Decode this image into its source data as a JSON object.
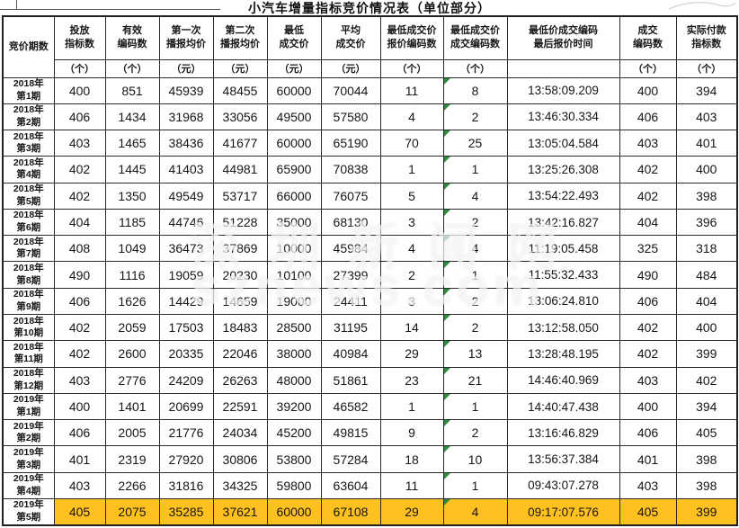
{
  "watermark": {
    "line1": "深圳新闻网",
    "line2": "sznews.com"
  },
  "colors": {
    "highlight_row": "#FFC120",
    "error_triangle": "#2E8B3C",
    "border": "#1F1F1F"
  },
  "chart_data": {
    "type": "table",
    "title": "小汽车增量指标竞价情况表（单位部分）",
    "columns": [
      {
        "label": "竞价期数",
        "unit": null
      },
      {
        "label": "投放\n指标数",
        "unit": "（个）"
      },
      {
        "label": "有效\n编码数",
        "unit": "（个）"
      },
      {
        "label": "第一次\n播报均价",
        "unit": "（元）"
      },
      {
        "label": "第二次\n播报均价",
        "unit": "（元）"
      },
      {
        "label": "最低\n成交价",
        "unit": "（元）"
      },
      {
        "label": "平均\n成交价",
        "unit": "（元）"
      },
      {
        "label": "最低成交价\n报价编码数",
        "unit": "（个）"
      },
      {
        "label": "最低成交价\n成交编码数",
        "unit": "（个）"
      },
      {
        "label": "最低价成交编码\n最后报价时间",
        "unit": ""
      },
      {
        "label": "成交\n编码数",
        "unit": "（个）"
      },
      {
        "label": "实际付款\n指标数",
        "unit": "（个）"
      }
    ],
    "highlight_row_index": 16,
    "rows": [
      {
        "period": "2018年\n第1期",
        "cells": [
          "400",
          "851",
          "45939",
          "48455",
          "60000",
          "70044",
          "11",
          "8",
          "13:58:09.209",
          "400",
          "394"
        ]
      },
      {
        "period": "2018年\n第2期",
        "cells": [
          "406",
          "1434",
          "31968",
          "33056",
          "49500",
          "57580",
          "4",
          "2",
          "13:46:30.334",
          "406",
          "403"
        ]
      },
      {
        "period": "2018年\n第3期",
        "cells": [
          "403",
          "1465",
          "38436",
          "41677",
          "60000",
          "65190",
          "70",
          "25",
          "13:05:04.584",
          "403",
          "401"
        ]
      },
      {
        "period": "2018年\n第4期",
        "cells": [
          "402",
          "1445",
          "41403",
          "44981",
          "65900",
          "70838",
          "1",
          "1",
          "13:25:26.308",
          "402",
          "400"
        ]
      },
      {
        "period": "2018年\n第5期",
        "cells": [
          "402",
          "1350",
          "49549",
          "53717",
          "66000",
          "76075",
          "5",
          "4",
          "13:54:22.493",
          "402",
          "398"
        ]
      },
      {
        "period": "2018年\n第6期",
        "cells": [
          "404",
          "1185",
          "44746",
          "51228",
          "35000",
          "68130",
          "3",
          "2",
          "13:42:16.827",
          "404",
          "396"
        ]
      },
      {
        "period": "2018年\n第7期",
        "cells": [
          "408",
          "1049",
          "36473",
          "37869",
          "10000",
          "45984",
          "4",
          "4",
          "11:19:05.458",
          "325",
          "318"
        ]
      },
      {
        "period": "2018年\n第8期",
        "cells": [
          "490",
          "1116",
          "19059",
          "20230",
          "10100",
          "27399",
          "2",
          "1",
          "11:55:32.433",
          "490",
          "484"
        ]
      },
      {
        "period": "2018年\n第9期",
        "cells": [
          "406",
          "1626",
          "14429",
          "14659",
          "19000",
          "24411",
          "3",
          "2",
          "13:06:24.810",
          "406",
          "404"
        ]
      },
      {
        "period": "2018年\n第10期",
        "cells": [
          "402",
          "2059",
          "17503",
          "18483",
          "28500",
          "31195",
          "14",
          "2",
          "13:12:58.050",
          "402",
          "400"
        ]
      },
      {
        "period": "2018年\n第11期",
        "cells": [
          "402",
          "2600",
          "20335",
          "22046",
          "38000",
          "40984",
          "29",
          "13",
          "13:28:48.195",
          "402",
          "399"
        ]
      },
      {
        "period": "2018年\n第12期",
        "cells": [
          "403",
          "2776",
          "24209",
          "26263",
          "48000",
          "51861",
          "23",
          "21",
          "14:46:40.969",
          "403",
          "402"
        ]
      },
      {
        "period": "2019年\n第1期",
        "cells": [
          "400",
          "1401",
          "20699",
          "22591",
          "39200",
          "46582",
          "1",
          "1",
          "14:40:47.438",
          "400",
          "394"
        ]
      },
      {
        "period": "2019年\n第2期",
        "cells": [
          "406",
          "2005",
          "21776",
          "24034",
          "45200",
          "49815",
          "9",
          "2",
          "13:16:46.829",
          "406",
          "405"
        ]
      },
      {
        "period": "2019年\n第3期",
        "cells": [
          "401",
          "2319",
          "27920",
          "30806",
          "53800",
          "57284",
          "18",
          "10",
          "13:56:37.384",
          "401",
          "398"
        ]
      },
      {
        "period": "2019年\n第4期",
        "cells": [
          "403",
          "2266",
          "31816",
          "34325",
          "59800",
          "63604",
          "11",
          "1",
          "09:43:07.278",
          "403",
          "398"
        ]
      },
      {
        "period": "2019年\n第5期",
        "cells": [
          "405",
          "2075",
          "35285",
          "37621",
          "60000",
          "67108",
          "29",
          "4",
          "09:17:07.576",
          "405",
          "399"
        ]
      }
    ]
  }
}
